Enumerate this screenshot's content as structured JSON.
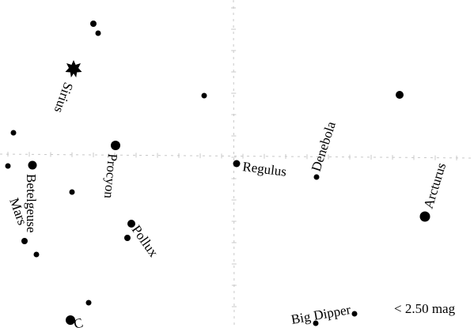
{
  "magnitude_limit": "< 2.50 mag",
  "labels": {
    "sirius": "Sirius",
    "procyon": "Procyon",
    "betelgeuse": "Betelgeuse",
    "mars": "Mars",
    "pollux": "Pollux",
    "regulus": "Regulus",
    "denebola": "Denebola",
    "arcturus": "Arcturus",
    "big_dipper": "Big Dipper",
    "partial": "C"
  }
}
